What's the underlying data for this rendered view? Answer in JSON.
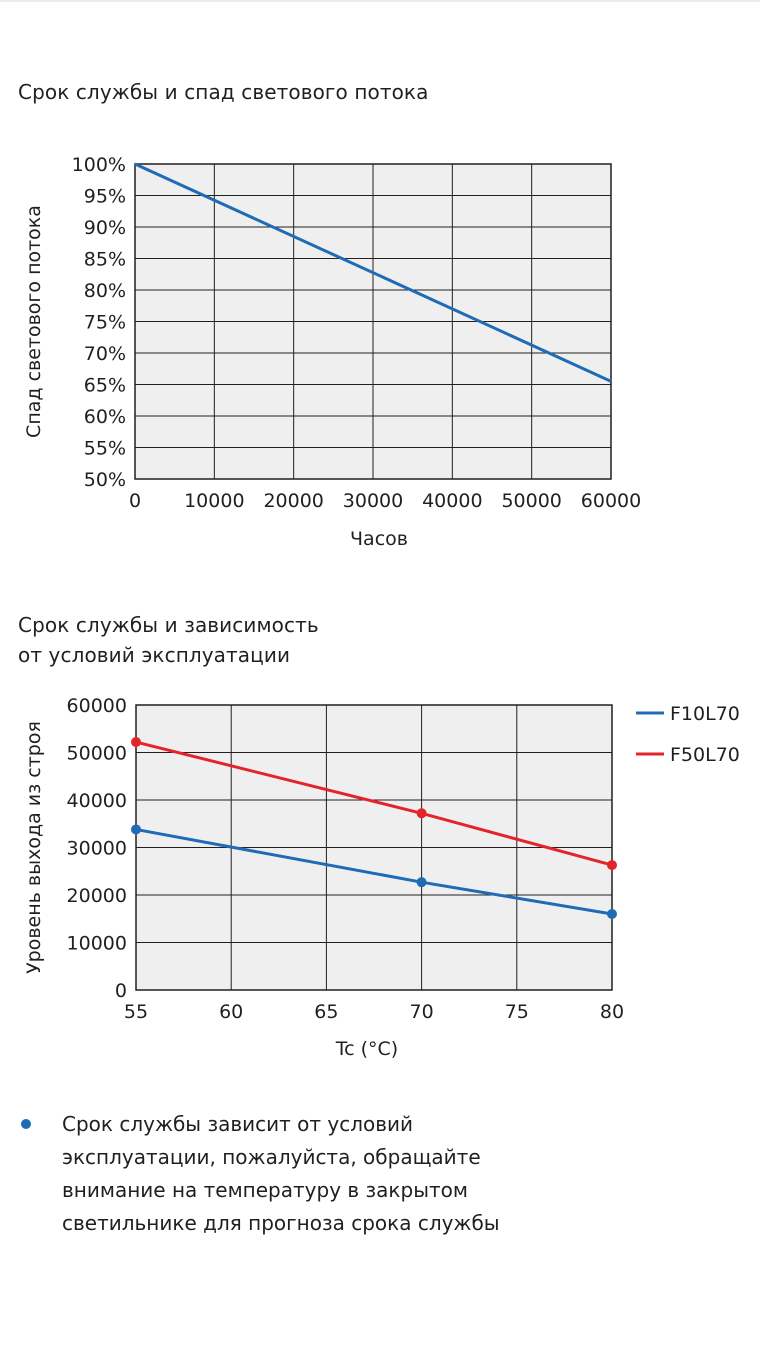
{
  "chart1": {
    "heading": "Срок службы и спад светового потока",
    "chart_data": {
      "type": "line",
      "x": [
        0,
        60000
      ],
      "series": [
        {
          "values": [
            100,
            65.5
          ],
          "color": "#1f6bb5"
        }
      ],
      "xlabel": "Часов",
      "ylabel": "Спад  светового потока",
      "xlim": [
        0,
        60000
      ],
      "ylim": [
        50,
        100
      ],
      "x_ticks": [
        0,
        10000,
        20000,
        30000,
        40000,
        50000,
        60000
      ],
      "x_tick_labels": [
        "0",
        "10000",
        "20000",
        "30000",
        "40000",
        "50000",
        "60000"
      ],
      "y_ticks": [
        50,
        55,
        60,
        65,
        70,
        75,
        80,
        85,
        90,
        95,
        100
      ],
      "y_tick_labels": [
        "50%",
        "55%",
        "60%",
        "65%",
        "70%",
        "75%",
        "80%",
        "85%",
        "90%",
        "95%",
        "100%"
      ],
      "grid": true,
      "plot_background": "#efefef"
    }
  },
  "chart2": {
    "heading_lines": [
      "Срок службы и зависимость",
      "от условий эксплуатации"
    ],
    "chart_data": {
      "type": "line",
      "x": [
        55,
        70,
        80
      ],
      "series": [
        {
          "name": "F10L70",
          "values": [
            33800,
            22700,
            16000
          ],
          "color": "#1f6bb5"
        },
        {
          "name": "F50L70",
          "values": [
            52200,
            37200,
            26300
          ],
          "color": "#e3242b"
        }
      ],
      "xlabel": "Tc (°C)",
      "ylabel": "Уровень выхода из строя",
      "xlim": [
        55,
        80
      ],
      "ylim": [
        0,
        60000
      ],
      "x_ticks": [
        55,
        60,
        65,
        70,
        75,
        80
      ],
      "x_tick_labels": [
        "55",
        "60",
        "65",
        "70",
        "75",
        "80"
      ],
      "y_ticks": [
        0,
        10000,
        20000,
        30000,
        40000,
        50000,
        60000
      ],
      "y_tick_labels": [
        "0",
        "10000",
        "20000",
        "30000",
        "40000",
        "50000",
        "60000"
      ],
      "grid": true,
      "legend": "right",
      "markers": true,
      "plot_background": "#efefef"
    }
  },
  "note": {
    "text": "Срок  службы зависит от условий\nэксплуатации, пожалуйста, обращайте\nвнимание на температуру в закрытом\nсветильнике для прогноза срока службы"
  }
}
